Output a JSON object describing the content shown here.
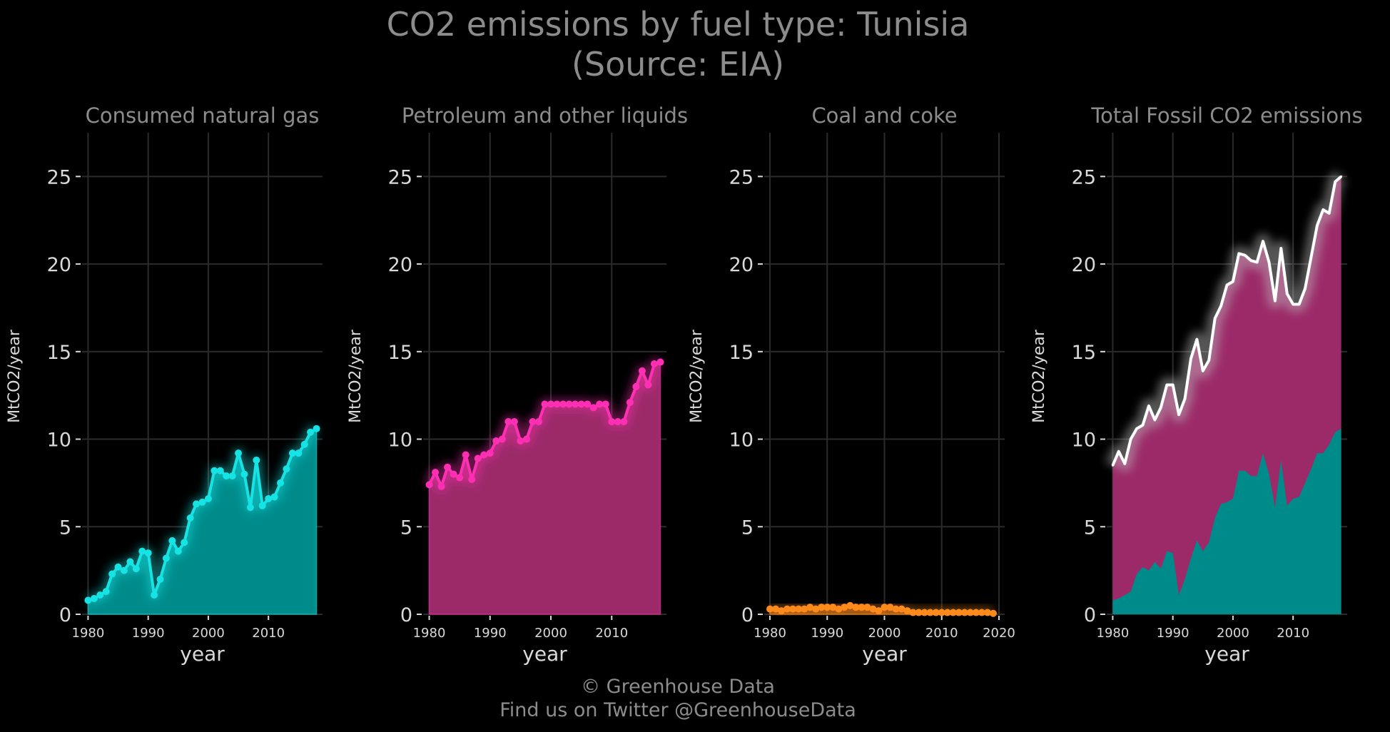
{
  "title": {
    "line1": "CO2 emissions by fuel type: Tunisia",
    "line2": "(Source: EIA)"
  },
  "footer": {
    "copyright": "© Greenhouse Data",
    "twitter": "Find us on Twitter @GreenhouseData"
  },
  "colors": {
    "background": "#000000",
    "text": "#8c8c8c",
    "tick_text": "#d9d9d9",
    "grid": "#2b2b2b",
    "gas": "#16e3e3",
    "gas_fill": "#008b8b",
    "petroleum": "#ff2fb4",
    "petroleum_fill": "#9c2a69",
    "coal": "#ff8a1c",
    "total": "#ffffff"
  },
  "chart_data": [
    {
      "type": "area",
      "title": "Consumed natural gas",
      "xlabel": "year",
      "ylabel": "MtCO2/year",
      "xlim": [
        1979,
        2019
      ],
      "ylim": [
        0,
        27.5
      ],
      "x_ticks": [
        "1980",
        "1990",
        "2000",
        "2010"
      ],
      "y_ticks": [
        "0",
        "5",
        "10",
        "15",
        "20",
        "25"
      ],
      "grid": true,
      "series": [
        {
          "x": [
            1980,
            1981,
            1982,
            1983,
            1984,
            1985,
            1986,
            1987,
            1988,
            1989,
            1990,
            1991,
            1992,
            1993,
            1994,
            1995,
            1996,
            1997,
            1998,
            1999,
            2000,
            2001,
            2002,
            2003,
            2004,
            2005,
            2006,
            2007,
            2008,
            2009,
            2010,
            2011,
            2012,
            2013,
            2014,
            2015,
            2016,
            2017,
            2018
          ],
          "values": [
            0.8,
            0.9,
            1.1,
            1.3,
            2.3,
            2.7,
            2.5,
            3.0,
            2.6,
            3.6,
            3.5,
            1.1,
            2.0,
            3.2,
            4.2,
            3.6,
            4.1,
            5.5,
            6.3,
            6.4,
            6.6,
            8.2,
            8.2,
            7.9,
            7.9,
            9.2,
            8.0,
            6.1,
            8.8,
            6.2,
            6.6,
            6.7,
            7.5,
            8.3,
            9.2,
            9.2,
            9.7,
            10.4,
            10.6
          ]
        }
      ]
    },
    {
      "type": "area",
      "title": "Petroleum and other liquids",
      "xlabel": "year",
      "ylabel": "MtCO2/year",
      "xlim": [
        1979,
        2019
      ],
      "ylim": [
        0,
        27.5
      ],
      "x_ticks": [
        "1980",
        "1990",
        "2000",
        "2010"
      ],
      "y_ticks": [
        "0",
        "5",
        "10",
        "15",
        "20",
        "25"
      ],
      "grid": true,
      "series": [
        {
          "x": [
            1980,
            1981,
            1982,
            1983,
            1984,
            1985,
            1986,
            1987,
            1988,
            1989,
            1990,
            1991,
            1992,
            1993,
            1994,
            1995,
            1996,
            1997,
            1998,
            1999,
            2000,
            2001,
            2002,
            2003,
            2004,
            2005,
            2006,
            2007,
            2008,
            2009,
            2010,
            2011,
            2012,
            2013,
            2014,
            2015,
            2016,
            2017,
            2018
          ],
          "values": [
            7.4,
            8.1,
            7.3,
            8.4,
            8.0,
            7.8,
            9.1,
            7.7,
            8.9,
            9.1,
            9.2,
            9.9,
            10.0,
            11.0,
            11.0,
            9.9,
            10.0,
            11.0,
            11.0,
            12.0,
            12.0,
            12.0,
            12.0,
            12.0,
            12.0,
            12.0,
            12.0,
            11.8,
            12.0,
            12.0,
            11.0,
            11.0,
            11.0,
            12.1,
            13.0,
            13.9,
            13.1,
            14.3,
            14.4
          ]
        }
      ]
    },
    {
      "type": "area",
      "title": "Coal and coke",
      "xlabel": "year",
      "ylabel": "MtCO2/year",
      "xlim": [
        1979,
        2021
      ],
      "ylim": [
        0,
        27.5
      ],
      "x_ticks": [
        "1980",
        "1990",
        "2000",
        "2010",
        "2020"
      ],
      "y_ticks": [
        "0",
        "5",
        "10",
        "15",
        "20",
        "25"
      ],
      "grid": true,
      "series": [
        {
          "x": [
            1980,
            1981,
            1982,
            1983,
            1984,
            1985,
            1986,
            1987,
            1988,
            1989,
            1990,
            1991,
            1992,
            1993,
            1994,
            1995,
            1996,
            1997,
            1998,
            1999,
            2000,
            2001,
            2002,
            2003,
            2004,
            2005,
            2006,
            2007,
            2008,
            2009,
            2010,
            2011,
            2012,
            2013,
            2014,
            2015,
            2016,
            2017,
            2018,
            2019
          ],
          "values": [
            0.3,
            0.3,
            0.2,
            0.3,
            0.3,
            0.3,
            0.3,
            0.4,
            0.3,
            0.4,
            0.4,
            0.4,
            0.3,
            0.4,
            0.5,
            0.4,
            0.4,
            0.4,
            0.3,
            0.2,
            0.4,
            0.4,
            0.3,
            0.3,
            0.2,
            0.1,
            0.1,
            0.1,
            0.1,
            0.1,
            0.1,
            0.1,
            0.1,
            0.1,
            0.1,
            0.1,
            0.1,
            0.1,
            0.1,
            0.05
          ]
        }
      ]
    },
    {
      "type": "area",
      "title": "Total Fossil CO2 emissions",
      "xlabel": "year",
      "ylabel": "MtCO2/year",
      "xlim": [
        1979,
        2019
      ],
      "ylim": [
        0,
        27.5
      ],
      "x_ticks": [
        "1980",
        "1990",
        "2000",
        "2010"
      ],
      "y_ticks": [
        "0",
        "5",
        "10",
        "15",
        "20",
        "25"
      ],
      "grid": true,
      "series": [
        {
          "x": [
            1980,
            1981,
            1982,
            1983,
            1984,
            1985,
            1986,
            1987,
            1988,
            1989,
            1990,
            1991,
            1992,
            1993,
            1994,
            1995,
            1996,
            1997,
            1998,
            1999,
            2000,
            2001,
            2002,
            2003,
            2004,
            2005,
            2006,
            2007,
            2008,
            2009,
            2010,
            2011,
            2012,
            2013,
            2014,
            2015,
            2016,
            2017,
            2018
          ],
          "values": [
            8.5,
            9.3,
            8.6,
            10.0,
            10.6,
            10.8,
            11.9,
            11.1,
            11.8,
            13.1,
            13.1,
            11.4,
            12.3,
            14.6,
            15.7,
            13.9,
            14.5,
            16.9,
            17.6,
            18.8,
            19.0,
            20.6,
            20.5,
            20.2,
            20.1,
            21.3,
            20.1,
            17.9,
            20.9,
            18.3,
            17.7,
            17.7,
            18.6,
            20.4,
            22.2,
            23.1,
            22.9,
            24.7,
            25.0
          ]
        }
      ]
    }
  ]
}
